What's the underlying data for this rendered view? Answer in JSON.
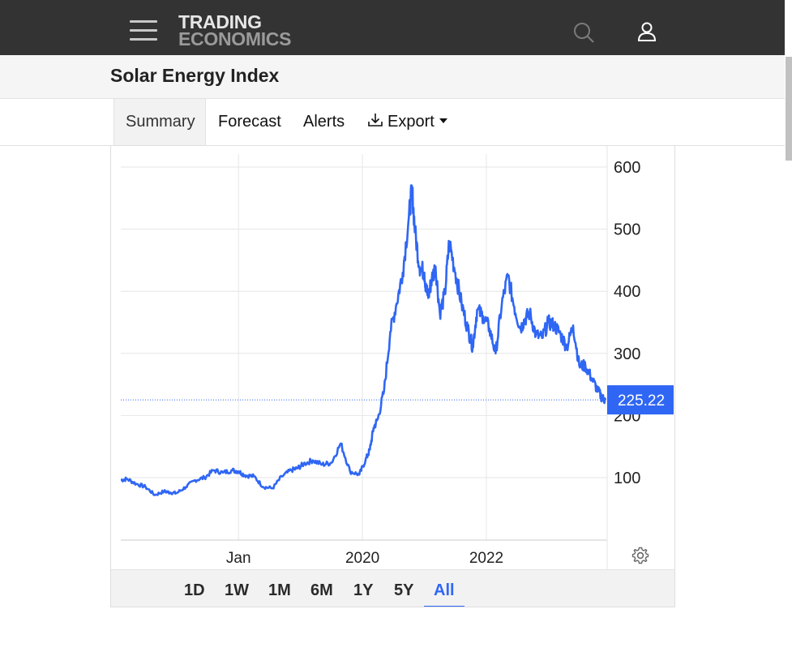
{
  "header": {
    "logo_line1": "TRADING",
    "logo_line2": "ECONOMICS",
    "menu_icon": "hamburger-menu-icon",
    "search_icon": "search-icon",
    "user_icon": "user-icon"
  },
  "page": {
    "title": "Solar Energy Index"
  },
  "tabs": [
    {
      "label": "Summary",
      "active": true
    },
    {
      "label": "Forecast",
      "active": false
    },
    {
      "label": "Alerts",
      "active": false
    },
    {
      "label": "Export",
      "active": false
    }
  ],
  "ranges": [
    {
      "label": "1D",
      "active": false
    },
    {
      "label": "1W",
      "active": false
    },
    {
      "label": "1M",
      "active": false
    },
    {
      "label": "6M",
      "active": false
    },
    {
      "label": "1Y",
      "active": false
    },
    {
      "label": "5Y",
      "active": false
    },
    {
      "label": "All",
      "active": true
    }
  ],
  "colors": {
    "line": "#2f66f4",
    "header_bg": "#333333",
    "price_tag": "#2f66f4"
  },
  "chart_data": {
    "type": "line",
    "title": "",
    "xlabel": "",
    "ylabel": "",
    "x_tick_labels": [
      "Jan",
      "2020",
      "2022"
    ],
    "x_ticks": [
      2018.0,
      2020.0,
      2022.0
    ],
    "y_ticks": [
      100,
      200,
      300,
      400,
      500,
      600
    ],
    "y_tick_labels": [
      "100",
      "200",
      "300",
      "400",
      "500",
      "600"
    ],
    "ylim": [
      0,
      620
    ],
    "xlim": [
      2016.1,
      2023.95
    ],
    "grid": true,
    "last_value": "225.22",
    "series": [
      {
        "x": [
          2016.1,
          2016.2,
          2016.35,
          2016.5,
          2016.65,
          2016.8,
          2016.9,
          2017.0,
          2017.15,
          2017.3,
          2017.45,
          2017.6,
          2017.75,
          2017.9,
          2018.0,
          2018.1,
          2018.25,
          2018.4,
          2018.55,
          2018.7,
          2018.85,
          2018.95,
          2019.05,
          2019.2,
          2019.35,
          2019.5,
          2019.65,
          2019.8,
          2019.95,
          2020.05,
          2020.12,
          2020.18,
          2020.25,
          2020.35,
          2020.45,
          2020.55,
          2020.65,
          2020.75,
          2020.8,
          2020.85,
          2020.92,
          2021.0,
          2021.03,
          2021.07,
          2021.12,
          2021.18,
          2021.25,
          2021.33,
          2021.4,
          2021.5,
          2021.6,
          2021.7,
          2021.78,
          2021.85,
          2021.95,
          2022.05,
          2022.15,
          2022.25,
          2022.35,
          2022.45,
          2022.55,
          2022.62,
          2022.7,
          2022.8,
          2022.9,
          2023.0,
          2023.1,
          2023.2,
          2023.3,
          2023.4,
          2023.5,
          2023.6,
          2023.7,
          2023.8,
          2023.87,
          2023.92
        ],
        "y": [
          96,
          98,
          90,
          85,
          72,
          78,
          76,
          75,
          85,
          96,
          100,
          112,
          108,
          112,
          110,
          104,
          102,
          85,
          83,
          102,
          112,
          115,
          122,
          128,
          121,
          124,
          155,
          110,
          105,
          128,
          145,
          180,
          195,
          240,
          335,
          380,
          430,
          520,
          565,
          495,
          440,
          430,
          400,
          395,
          420,
          440,
          365,
          395,
          480,
          430,
          380,
          340,
          310,
          370,
          360,
          340,
          300,
          380,
          425,
          375,
          340,
          355,
          365,
          330,
          325,
          350,
          345,
          330,
          310,
          345,
          280,
          280,
          260,
          240,
          228,
          225
        ]
      }
    ]
  }
}
